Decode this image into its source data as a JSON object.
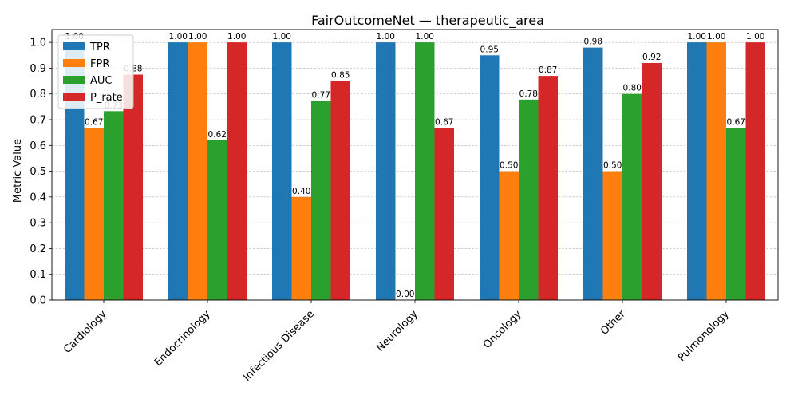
{
  "chart_data": {
    "type": "bar",
    "title": "FairOutcomeNet — therapeutic_area",
    "xlabel": "",
    "ylabel": "Metric Value",
    "ylim": [
      0,
      1.05
    ],
    "yticks": [
      0.0,
      0.1,
      0.2,
      0.3,
      0.4,
      0.5,
      0.6,
      0.7,
      0.8,
      0.9,
      1.0
    ],
    "ytick_labels": [
      "0.0",
      "0.1",
      "0.2",
      "0.3",
      "0.4",
      "0.5",
      "0.6",
      "0.7",
      "0.8",
      "0.9",
      "1.0"
    ],
    "grid": "y-dashed",
    "legend_position": "top-left",
    "categories": [
      "Cardiology",
      "Endocrinology",
      "Infectious Disease",
      "Neurology",
      "Oncology",
      "Other",
      "Pulmonology"
    ],
    "series": [
      {
        "name": "TPR",
        "color": "#1f77b4",
        "values": [
          1.0,
          1.0,
          1.0,
          1.0,
          0.95,
          0.98,
          1.0
        ],
        "labels": [
          "1.00",
          "1.00",
          "1.00",
          "1.00",
          "0.95",
          "0.98",
          "1.00"
        ]
      },
      {
        "name": "FPR",
        "color": "#ff7f0e",
        "values": [
          0.667,
          1.0,
          0.4,
          0.0,
          0.5,
          0.5,
          1.0
        ],
        "labels": [
          "0.67",
          "1.00",
          "0.40",
          "0.00",
          "0.50",
          "0.50",
          "1.00"
        ]
      },
      {
        "name": "AUC",
        "color": "#2ca02c",
        "values": [
          0.733,
          0.62,
          0.773,
          1.0,
          0.778,
          0.8,
          0.667
        ],
        "labels": [
          "0.73",
          "0.62",
          "0.77",
          "1.00",
          "0.78",
          "0.80",
          "0.67"
        ]
      },
      {
        "name": "P_rate",
        "color": "#d62728",
        "values": [
          0.875,
          1.0,
          0.85,
          0.667,
          0.87,
          0.92,
          1.0
        ],
        "labels": [
          "0.88",
          "1.00",
          "0.85",
          "0.67",
          "0.87",
          "0.92",
          "1.00"
        ]
      }
    ]
  }
}
